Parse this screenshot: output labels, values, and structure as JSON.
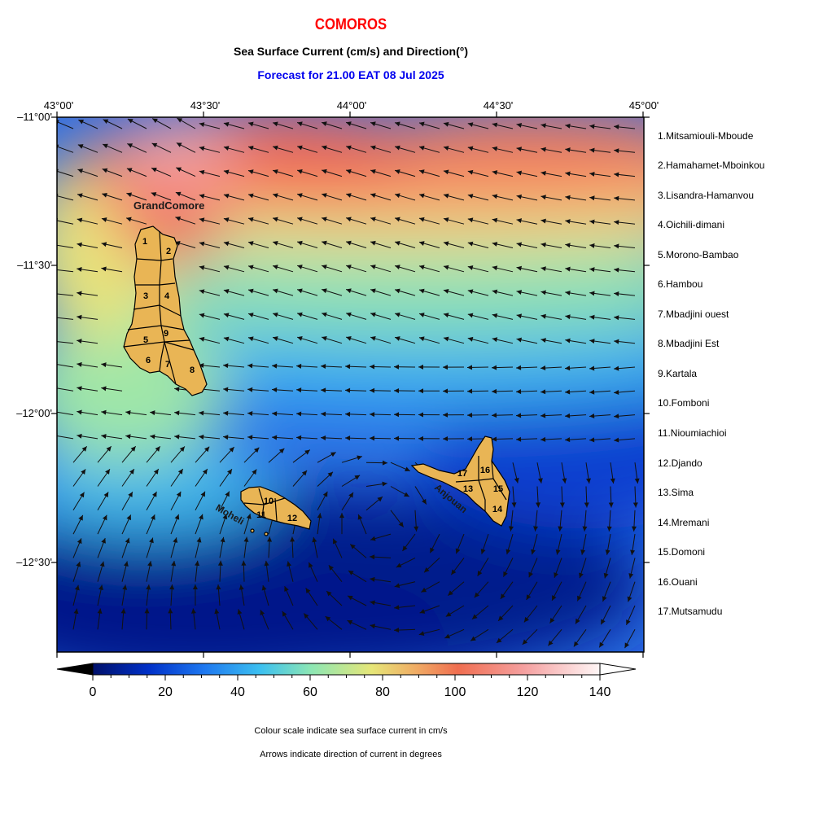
{
  "header": {
    "title": "COMOROS",
    "subtitle": "Sea Surface Current (cm/s) and Direction(°)",
    "forecast": "Forecast for  21.00 EAT 08 Jul 2025"
  },
  "axes": {
    "lon_labels": [
      "43°00'",
      "43°30'",
      "44°00'",
      "44°30'",
      "45°00'"
    ],
    "lat_labels": [
      "–11°00'",
      "–11°30'",
      "–12°00'",
      "–12°30'"
    ]
  },
  "islands": {
    "grand_comore": "GrandComore",
    "moheli": "Moheli",
    "anjouan": "Anjouan",
    "region_numbers": [
      "1",
      "2",
      "3",
      "4",
      "5",
      "6",
      "7",
      "8",
      "9",
      "10",
      "11",
      "12",
      "13",
      "14",
      "15",
      "16",
      "17"
    ]
  },
  "legend": [
    "1.Mitsamiouli-Mboude",
    "2.Hamahamet-Mboinkou",
    "3.Lisandra-Hamanvou",
    "4.Oichili-dimani",
    "5.Morono-Bambao",
    "6.Hambou",
    "7.Mbadjini ouest",
    "8.Mbadjini Est",
    "9.Kartala",
    "10.Fomboni",
    "11.Nioumiachioi",
    "12.Djando",
    "13.Sima",
    "14.Mremani",
    "15.Domoni",
    "16.Ouani",
    "17.Mutsamudu"
  ],
  "colorbar": {
    "tick_labels": [
      "0",
      "20",
      "40",
      "60",
      "80",
      "100",
      "120",
      "140"
    ],
    "stops": [
      "#00106a",
      "#0030c8",
      "#1e78f0",
      "#3cc0f0",
      "#8ce6b4",
      "#e6e678",
      "#f0aa64",
      "#f06e50",
      "#f5a0a0",
      "#fff6f6"
    ]
  },
  "notes": {
    "colour": "Colour scale indicate sea surface current in cm/s",
    "arrows": "Arrows indicate direction of current in degrees"
  }
}
